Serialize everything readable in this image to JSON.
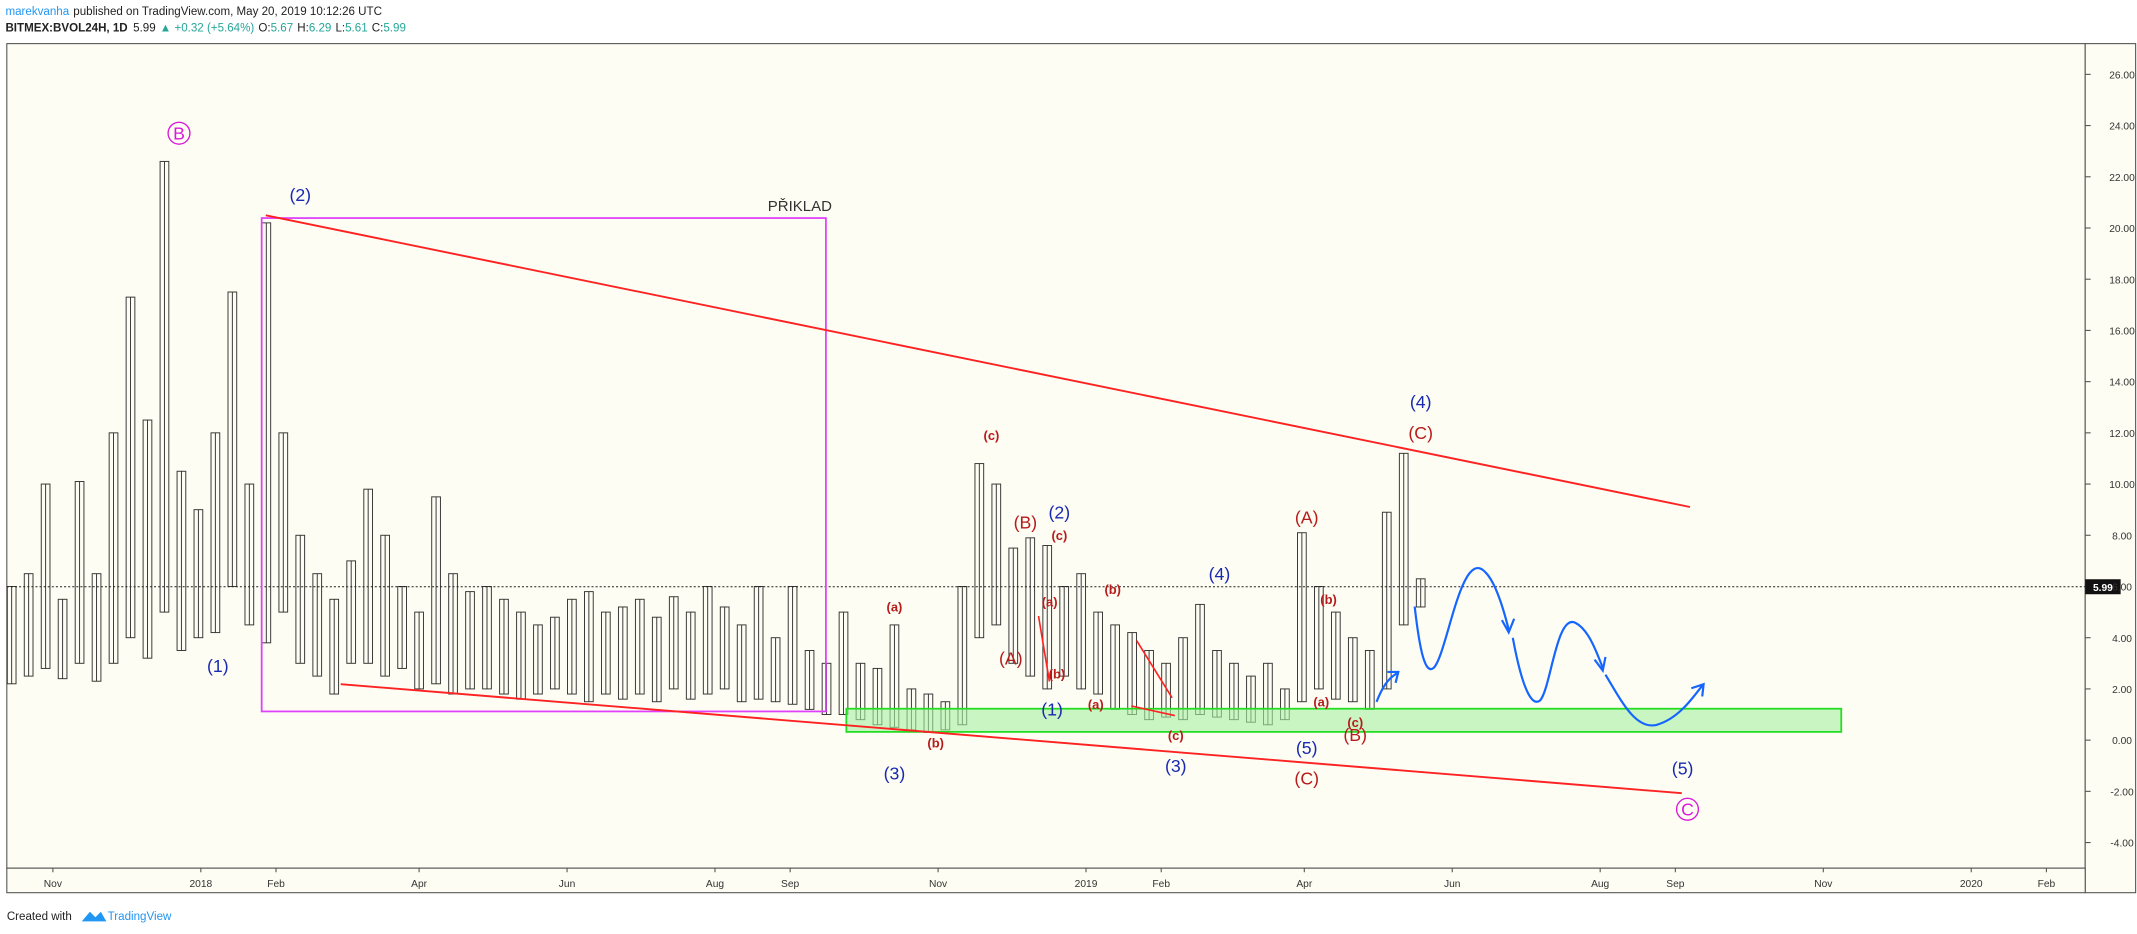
{
  "header": {
    "author": "marekvanha",
    "published": "published on TradingView.com, May 20, 2019 10:12:26 UTC",
    "symbol": "BITMEX:BVOL24H, 1D",
    "last": "5.99",
    "change": "▲ +0.32 (+5.64%)",
    "ohlc": [
      {
        "label": "O:",
        "value": "5.67"
      },
      {
        "label": "H:",
        "value": "6.29"
      },
      {
        "label": "L:",
        "value": "5.61"
      },
      {
        "label": "C:",
        "value": "5.99"
      }
    ]
  },
  "footer": {
    "created": "Created with",
    "brand": "TradingView"
  },
  "chart_data": {
    "type": "range-bar",
    "color": "#333333",
    "x": [
      "2017-10-15",
      "2017-10-22",
      "2017-10-29",
      "2017-11-05",
      "2017-11-12",
      "2017-11-19",
      "2017-11-26",
      "2017-12-03",
      "2017-12-10",
      "2017-12-17",
      "2017-12-24",
      "2017-12-31",
      "2018-01-07",
      "2018-01-14",
      "2018-01-21",
      "2018-01-28",
      "2018-02-04",
      "2018-02-11",
      "2018-02-18",
      "2018-02-25",
      "2018-03-04",
      "2018-03-11",
      "2018-03-18",
      "2018-03-25",
      "2018-04-01",
      "2018-04-08",
      "2018-04-15",
      "2018-04-22",
      "2018-04-29",
      "2018-05-06",
      "2018-05-13",
      "2018-05-20",
      "2018-05-27",
      "2018-06-03",
      "2018-06-10",
      "2018-06-17",
      "2018-06-24",
      "2018-07-01",
      "2018-07-08",
      "2018-07-15",
      "2018-07-22",
      "2018-07-29",
      "2018-08-05",
      "2018-08-12",
      "2018-08-19",
      "2018-08-26",
      "2018-09-02",
      "2018-09-09",
      "2018-09-16",
      "2018-09-23",
      "2018-09-30",
      "2018-10-07",
      "2018-10-14",
      "2018-10-21",
      "2018-10-28",
      "2018-11-04",
      "2018-11-11",
      "2018-11-18",
      "2018-11-25",
      "2018-12-02",
      "2018-12-09",
      "2018-12-16",
      "2018-12-23",
      "2018-12-30",
      "2019-01-06",
      "2019-01-13",
      "2019-01-20",
      "2019-01-27",
      "2019-02-03",
      "2019-02-10",
      "2019-02-17",
      "2019-02-24",
      "2019-03-03",
      "2019-03-10",
      "2019-03-17",
      "2019-03-24",
      "2019-03-31",
      "2019-04-07",
      "2019-04-14",
      "2019-04-21",
      "2019-04-28",
      "2019-05-05",
      "2019-05-12",
      "2019-05-19"
    ],
    "high": [
      6.0,
      6.5,
      10.0,
      5.5,
      10.1,
      6.5,
      12.0,
      17.3,
      12.5,
      22.6,
      10.5,
      9.0,
      12.0,
      17.5,
      10.0,
      20.2,
      12.0,
      8.0,
      6.5,
      5.5,
      7.0,
      9.8,
      8.0,
      6.0,
      5.0,
      9.5,
      6.5,
      5.8,
      6.0,
      5.5,
      5.0,
      4.5,
      4.8,
      5.5,
      5.8,
      5.0,
      5.2,
      5.5,
      4.8,
      5.6,
      5.0,
      6.0,
      5.2,
      4.5,
      6.0,
      4.0,
      6.0,
      3.5,
      3.0,
      5.0,
      3.0,
      2.8,
      4.5,
      2.0,
      1.8,
      1.5,
      6.0,
      10.8,
      10.0,
      7.5,
      7.9,
      7.6,
      6.0,
      6.5,
      5.0,
      4.5,
      4.2,
      3.5,
      3.0,
      4.0,
      5.3,
      3.5,
      3.0,
      2.5,
      3.0,
      2.0,
      8.1,
      6.0,
      5.0,
      4.0,
      3.5,
      8.9,
      11.2,
      6.3
    ],
    "low": [
      2.2,
      2.5,
      2.8,
      2.4,
      3.0,
      2.3,
      3.0,
      4.0,
      3.2,
      5.0,
      3.5,
      4.0,
      4.2,
      6.0,
      4.5,
      3.8,
      5.0,
      3.0,
      2.5,
      1.8,
      3.0,
      3.0,
      2.5,
      2.8,
      2.0,
      2.2,
      1.8,
      2.0,
      2.0,
      1.8,
      1.6,
      1.8,
      2.0,
      1.8,
      1.5,
      1.8,
      1.6,
      1.8,
      1.5,
      2.0,
      1.6,
      1.8,
      2.0,
      1.5,
      1.6,
      1.5,
      1.4,
      1.2,
      1.0,
      1.0,
      0.8,
      0.6,
      0.5,
      0.4,
      0.3,
      0.4,
      0.6,
      4.0,
      4.5,
      3.0,
      2.5,
      2.0,
      2.5,
      2.0,
      1.8,
      1.2,
      1.0,
      0.8,
      0.9,
      0.8,
      1.0,
      0.9,
      0.8,
      0.7,
      0.6,
      0.8,
      1.5,
      2.0,
      1.6,
      1.5,
      1.2,
      2.0,
      4.5,
      5.2
    ],
    "last_price": 5.99,
    "xlim": [
      "2017-10-13",
      "2020-02-17"
    ],
    "xticks": [
      {
        "value": "2017-11-01",
        "label": "Nov"
      },
      {
        "value": "2018-01-01",
        "label": "2018"
      },
      {
        "value": "2018-02-01",
        "label": "Feb"
      },
      {
        "value": "2018-04-01",
        "label": "Apr"
      },
      {
        "value": "2018-06-01",
        "label": "Jun"
      },
      {
        "value": "2018-08-01",
        "label": "Aug"
      },
      {
        "value": "2018-09-01",
        "label": "Sep"
      },
      {
        "value": "2018-11-01",
        "label": "Nov"
      },
      {
        "value": "2019-01-01",
        "label": "2019"
      },
      {
        "value": "2019-02-01",
        "label": "Feb"
      },
      {
        "value": "2019-04-01",
        "label": "Apr"
      },
      {
        "value": "2019-06-01",
        "label": "Jun"
      },
      {
        "value": "2019-08-01",
        "label": "Aug"
      },
      {
        "value": "2019-09-01",
        "label": "Sep"
      },
      {
        "value": "2019-11-01",
        "label": "Nov"
      },
      {
        "value": "2020-01-01",
        "label": "2020"
      },
      {
        "value": "2020-02-01",
        "label": "Feb"
      }
    ],
    "ylim": [
      -5,
      27.2
    ],
    "yticks": [
      {
        "value": 26,
        "label": "26.00"
      },
      {
        "value": 24,
        "label": "24.00"
      },
      {
        "value": 22,
        "label": "22.00"
      },
      {
        "value": 20,
        "label": "20.00"
      },
      {
        "value": 18,
        "label": "18.00"
      },
      {
        "value": 16,
        "label": "16.00"
      },
      {
        "value": 14,
        "label": "14.00"
      },
      {
        "value": 12,
        "label": "12.00"
      },
      {
        "value": 10,
        "label": "10.00"
      },
      {
        "value": 8,
        "label": "8.00"
      },
      {
        "value": 6,
        "label": "6.00"
      },
      {
        "value": 4,
        "label": "4.00"
      },
      {
        "value": 2,
        "label": "2.00"
      },
      {
        "value": 0,
        "label": "0.00"
      },
      {
        "value": -2,
        "label": "-2.00"
      },
      {
        "value": -4,
        "label": "-4.00"
      }
    ],
    "annotations": [
      {
        "text": "B",
        "x": "2017-12-23",
        "y": 23.7,
        "color": "#d81bd8",
        "circled": true
      },
      {
        "text": "(2)",
        "x": "2018-02-11",
        "y": 21.3,
        "color": "#1a2ab0"
      },
      {
        "text": "(1)",
        "x": "2018-01-08",
        "y": 2.9,
        "color": "#1a2ab0"
      },
      {
        "text": "PŘIKLAD",
        "x": "2018-09-05",
        "y": 20.9,
        "color": "#333333"
      },
      {
        "text": "(a)",
        "x": "2018-10-14",
        "y": 5.2,
        "color": "#b71c1c"
      },
      {
        "text": "(b)",
        "x": "2018-10-31",
        "y": -0.1,
        "color": "#b71c1c"
      },
      {
        "text": "(3)",
        "x": "2018-10-14",
        "y": -1.3,
        "color": "#1a2ab0"
      },
      {
        "text": "(c)",
        "x": "2018-11-23",
        "y": 11.9,
        "color": "#b71c1c"
      },
      {
        "text": "(B)",
        "x": "2018-12-07",
        "y": 8.5,
        "color": "#b71c1c"
      },
      {
        "text": "(2)",
        "x": "2018-12-21",
        "y": 8.9,
        "color": "#1a2ab0"
      },
      {
        "text": "(c)",
        "x": "2018-12-21",
        "y": 8.0,
        "color": "#b71c1c"
      },
      {
        "text": "(a)",
        "x": "2018-12-17",
        "y": 5.4,
        "color": "#b71c1c"
      },
      {
        "text": "(b)",
        "x": "2019-01-12",
        "y": 5.9,
        "color": "#b71c1c"
      },
      {
        "text": "(A)",
        "x": "2018-12-01",
        "y": 3.2,
        "color": "#b71c1c"
      },
      {
        "text": "(b)",
        "x": "2018-12-20",
        "y": 2.6,
        "color": "#b71c1c"
      },
      {
        "text": "(1)",
        "x": "2018-12-18",
        "y": 1.2,
        "color": "#1a2ab0"
      },
      {
        "text": "(a)",
        "x": "2019-01-05",
        "y": 1.4,
        "color": "#b71c1c"
      },
      {
        "text": "(c)",
        "x": "2019-02-07",
        "y": 0.2,
        "color": "#b71c1c"
      },
      {
        "text": "(3)",
        "x": "2019-02-07",
        "y": -1.0,
        "color": "#1a2ab0"
      },
      {
        "text": "(4)",
        "x": "2019-02-25",
        "y": 6.5,
        "color": "#1a2ab0"
      },
      {
        "text": "(A)",
        "x": "2019-04-02",
        "y": 8.7,
        "color": "#b71c1c"
      },
      {
        "text": "(b)",
        "x": "2019-04-11",
        "y": 5.5,
        "color": "#b71c1c"
      },
      {
        "text": "(a)",
        "x": "2019-04-08",
        "y": 1.5,
        "color": "#b71c1c"
      },
      {
        "text": "(c)",
        "x": "2019-04-22",
        "y": 0.7,
        "color": "#b71c1c"
      },
      {
        "text": "(B)",
        "x": "2019-04-22",
        "y": 0.2,
        "color": "#b71c1c"
      },
      {
        "text": "(5)",
        "x": "2019-04-02",
        "y": -0.3,
        "color": "#1a2ab0"
      },
      {
        "text": "(C)",
        "x": "2019-04-02",
        "y": -1.5,
        "color": "#b71c1c"
      },
      {
        "text": "(4)",
        "x": "2019-05-19",
        "y": 13.2,
        "color": "#1a2ab0"
      },
      {
        "text": "(C)",
        "x": "2019-05-19",
        "y": 12.0,
        "color": "#b71c1c"
      },
      {
        "text": "(5)",
        "x": "2019-09-04",
        "y": -1.1,
        "color": "#1a2ab0"
      },
      {
        "text": "C",
        "x": "2019-09-06",
        "y": -2.7,
        "color": "#d81bd8",
        "circled": true
      }
    ]
  }
}
